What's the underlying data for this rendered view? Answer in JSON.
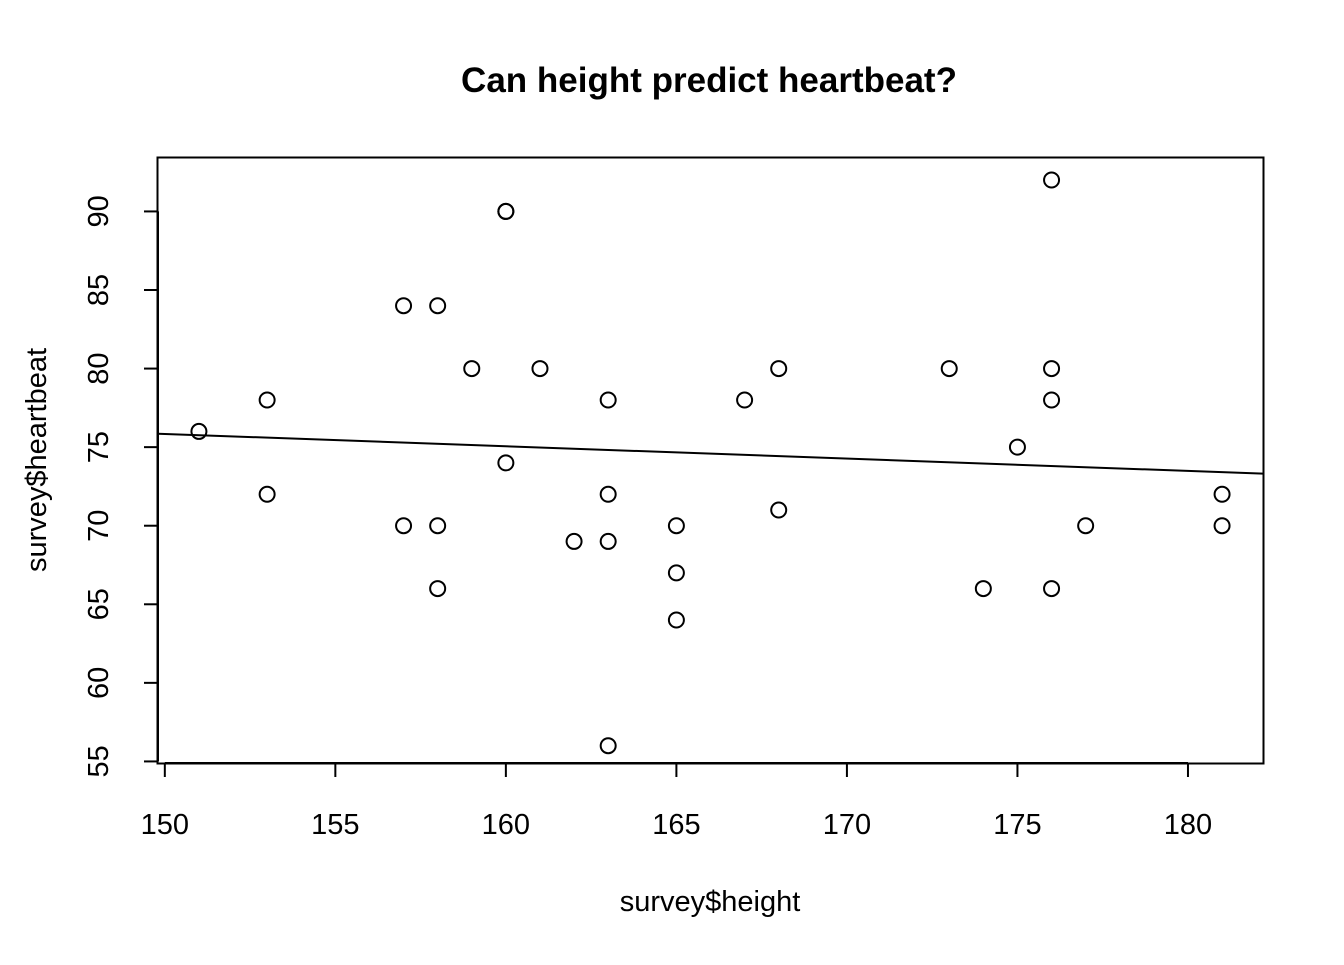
{
  "chart_data": {
    "type": "scatter",
    "title": "Can height predict heartbeat?",
    "xlabel": "survey$height",
    "ylabel": "survey$heartbeat",
    "xlim": [
      149.8,
      182.2
    ],
    "ylim": [
      54.9,
      93.4
    ],
    "x_ticks": [
      150,
      155,
      160,
      165,
      170,
      175,
      180
    ],
    "y_ticks": [
      55,
      60,
      65,
      70,
      75,
      80,
      85,
      90
    ],
    "grid": false,
    "legend": "none",
    "points": [
      {
        "x": 151,
        "y": 76
      },
      {
        "x": 153,
        "y": 78
      },
      {
        "x": 153,
        "y": 72
      },
      {
        "x": 157,
        "y": 84
      },
      {
        "x": 157,
        "y": 70
      },
      {
        "x": 158,
        "y": 84
      },
      {
        "x": 158,
        "y": 70
      },
      {
        "x": 158,
        "y": 66
      },
      {
        "x": 159,
        "y": 80
      },
      {
        "x": 160,
        "y": 90
      },
      {
        "x": 160,
        "y": 90
      },
      {
        "x": 160,
        "y": 74
      },
      {
        "x": 161,
        "y": 80
      },
      {
        "x": 162,
        "y": 69
      },
      {
        "x": 163,
        "y": 78
      },
      {
        "x": 163,
        "y": 72
      },
      {
        "x": 163,
        "y": 69
      },
      {
        "x": 163,
        "y": 56
      },
      {
        "x": 165,
        "y": 70
      },
      {
        "x": 165,
        "y": 67
      },
      {
        "x": 165,
        "y": 64
      },
      {
        "x": 167,
        "y": 78
      },
      {
        "x": 168,
        "y": 80
      },
      {
        "x": 168,
        "y": 71
      },
      {
        "x": 173,
        "y": 80
      },
      {
        "x": 174,
        "y": 66
      },
      {
        "x": 175,
        "y": 75
      },
      {
        "x": 176,
        "y": 92
      },
      {
        "x": 176,
        "y": 80
      },
      {
        "x": 176,
        "y": 78
      },
      {
        "x": 176,
        "y": 66
      },
      {
        "x": 177,
        "y": 70
      },
      {
        "x": 181,
        "y": 72
      },
      {
        "x": 181,
        "y": 70
      }
    ],
    "regression_line": {
      "intercept": 87.6,
      "slope": -0.0784
    }
  }
}
